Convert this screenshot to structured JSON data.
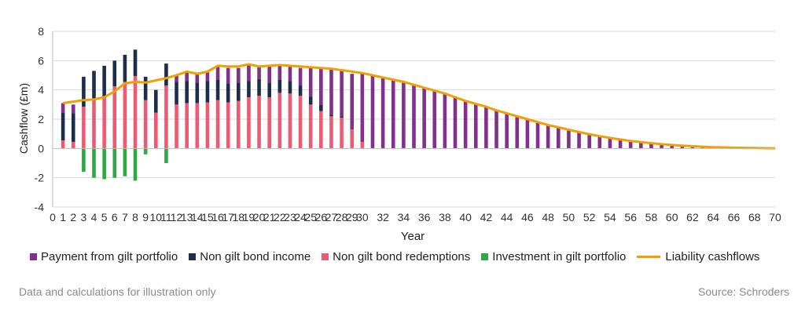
{
  "chart_data": {
    "type": "bar",
    "title": "",
    "xlabel": "Year",
    "ylabel": "Cashflow (£m)",
    "xlim": [
      0,
      70
    ],
    "ylim": [
      -4,
      8
    ],
    "yticks": [
      -4,
      -2,
      0,
      2,
      4,
      6,
      8
    ],
    "xticks": [
      0,
      1,
      2,
      3,
      4,
      5,
      6,
      7,
      8,
      9,
      10,
      11,
      12,
      13,
      14,
      15,
      16,
      17,
      18,
      19,
      20,
      21,
      22,
      23,
      24,
      25,
      26,
      27,
      28,
      29,
      30,
      32,
      34,
      36,
      38,
      40,
      42,
      44,
      46,
      48,
      50,
      52,
      54,
      56,
      58,
      60,
      62,
      64,
      66,
      68,
      70
    ],
    "grid": "horizontal",
    "legend_position": "bottom",
    "stacked": true,
    "x": [
      1,
      2,
      3,
      4,
      5,
      6,
      7,
      8,
      9,
      10,
      11,
      12,
      13,
      14,
      15,
      16,
      17,
      18,
      19,
      20,
      21,
      22,
      23,
      24,
      25,
      26,
      27,
      28,
      29,
      30,
      31,
      32,
      33,
      34,
      35,
      36,
      37,
      38,
      39,
      40,
      41,
      42,
      43,
      44,
      45,
      46,
      47,
      48,
      49,
      50,
      51,
      52,
      53,
      54,
      55,
      56,
      57,
      58,
      59,
      60,
      61,
      62,
      63,
      64,
      65,
      66,
      67,
      68,
      69,
      70
    ],
    "series": [
      {
        "name": "Non gilt bond redemptions",
        "color": "#ec5b72",
        "values": [
          0.55,
          0.45,
          2.85,
          3.3,
          3.45,
          4.25,
          4.55,
          4.95,
          3.3,
          2.45,
          4.3,
          3.0,
          3.1,
          3.1,
          3.15,
          3.3,
          3.15,
          3.25,
          3.5,
          3.6,
          3.5,
          3.8,
          3.75,
          3.6,
          3.0,
          2.55,
          2.2,
          2.1,
          1.3,
          0.45,
          0,
          0,
          0,
          0,
          0,
          0,
          0,
          0,
          0,
          0,
          0,
          0,
          0,
          0,
          0,
          0,
          0,
          0,
          0,
          0,
          0,
          0,
          0,
          0,
          0,
          0,
          0,
          0,
          0,
          0,
          0,
          0,
          0,
          0,
          0,
          0,
          0,
          0,
          0,
          0
        ]
      },
      {
        "name": "Non gilt bond income",
        "color": "#1c2e4a",
        "values": [
          1.9,
          1.95,
          2.05,
          2.0,
          2.2,
          1.75,
          1.85,
          1.8,
          1.6,
          1.55,
          1.5,
          1.55,
          1.5,
          1.4,
          1.45,
          1.4,
          1.3,
          1.25,
          1.1,
          1.15,
          1.0,
          0.9,
          0.85,
          0.7,
          0.55,
          0.45,
          0.1,
          0.1,
          0,
          0,
          0,
          0,
          0,
          0,
          0,
          0,
          0,
          0,
          0,
          0,
          0,
          0,
          0,
          0,
          0,
          0,
          0,
          0,
          0,
          0,
          0,
          0,
          0,
          0,
          0,
          0,
          0,
          0,
          0,
          0,
          0,
          0,
          0,
          0,
          0,
          0,
          0,
          0,
          0,
          0
        ]
      },
      {
        "name": "Payment from gilt portfolio",
        "color": "#82308e",
        "values": [
          0.65,
          0.6,
          0,
          0,
          0,
          0,
          0,
          0,
          0,
          0,
          0,
          0.45,
          0.6,
          0.55,
          0.6,
          0.95,
          1.05,
          1.0,
          1.15,
          0.85,
          1.15,
          1.0,
          1.05,
          1.2,
          1.95,
          2.5,
          3.15,
          3.15,
          3.8,
          4.65,
          5.0,
          4.85,
          4.75,
          4.55,
          4.35,
          4.15,
          3.95,
          3.75,
          3.5,
          3.25,
          3.05,
          2.85,
          2.6,
          2.4,
          2.2,
          2.0,
          1.8,
          1.6,
          1.45,
          1.28,
          1.12,
          0.97,
          0.84,
          0.72,
          0.61,
          0.51,
          0.43,
          0.36,
          0.29,
          0.24,
          0.19,
          0.15,
          0.12,
          0.09,
          0.07,
          0.05,
          0.04,
          0.03,
          0.02,
          0.01
        ]
      },
      {
        "name": "Investment in gilt portfolio",
        "color": "#2ea843",
        "values": [
          0,
          0,
          -1.6,
          -2.0,
          -2.1,
          -2.0,
          -1.9,
          -2.2,
          -0.4,
          0,
          -1.0,
          0,
          0,
          0,
          0,
          0,
          0,
          0,
          0,
          0,
          0,
          0,
          0,
          0,
          0,
          0,
          0,
          0,
          0,
          0,
          0,
          0,
          0,
          0,
          0,
          0,
          0,
          0,
          0,
          0,
          0,
          0,
          0,
          0,
          0,
          0,
          0,
          0,
          0,
          0,
          0,
          0,
          0,
          0,
          0,
          0,
          0,
          0,
          0,
          0,
          0,
          0,
          0,
          0,
          0,
          0,
          0,
          0,
          0,
          0
        ]
      }
    ],
    "line": {
      "name": "Liability cashflows",
      "color": "#f0a000",
      "x": [
        1,
        2,
        3,
        4,
        5,
        6,
        7,
        8,
        9,
        10,
        11,
        12,
        13,
        14,
        15,
        16,
        17,
        18,
        19,
        20,
        21,
        22,
        23,
        24,
        25,
        26,
        27,
        28,
        29,
        30,
        31,
        32,
        33,
        34,
        35,
        36,
        37,
        38,
        39,
        40,
        41,
        42,
        43,
        44,
        45,
        46,
        47,
        48,
        49,
        50,
        51,
        52,
        53,
        54,
        55,
        56,
        57,
        58,
        59,
        60,
        61,
        62,
        63,
        64,
        65,
        66,
        67,
        68,
        69,
        70
      ],
      "values": [
        3.1,
        3.2,
        3.3,
        3.35,
        3.5,
        3.9,
        4.45,
        4.55,
        4.5,
        4.65,
        4.8,
        5.0,
        5.25,
        5.1,
        5.25,
        5.65,
        5.6,
        5.6,
        5.75,
        5.6,
        5.65,
        5.7,
        5.65,
        5.6,
        5.55,
        5.5,
        5.45,
        5.35,
        5.25,
        5.15,
        5.0,
        4.85,
        4.7,
        4.55,
        4.35,
        4.15,
        3.95,
        3.75,
        3.5,
        3.25,
        3.05,
        2.85,
        2.6,
        2.4,
        2.2,
        2.0,
        1.8,
        1.6,
        1.45,
        1.28,
        1.12,
        0.97,
        0.84,
        0.72,
        0.61,
        0.51,
        0.43,
        0.36,
        0.29,
        0.24,
        0.19,
        0.15,
        0.12,
        0.09,
        0.07,
        0.05,
        0.04,
        0.03,
        0.02,
        0.01
      ]
    }
  },
  "legend": [
    {
      "label": "Payment from gilt portfolio",
      "color": "#82308e",
      "kind": "square"
    },
    {
      "label": "Non gilt bond income",
      "color": "#1c2e4a",
      "kind": "square"
    },
    {
      "label": "Non gilt bond redemptions",
      "color": "#ec5b72",
      "kind": "square"
    },
    {
      "label": "Investment in gilt portfolio",
      "color": "#2ea843",
      "kind": "square"
    },
    {
      "label": "Liability cashflows",
      "color": "#f0a000",
      "kind": "line"
    }
  ],
  "footer": {
    "left_note": "Data and calculations for illustration only",
    "right_note": "Source: Schroders"
  }
}
